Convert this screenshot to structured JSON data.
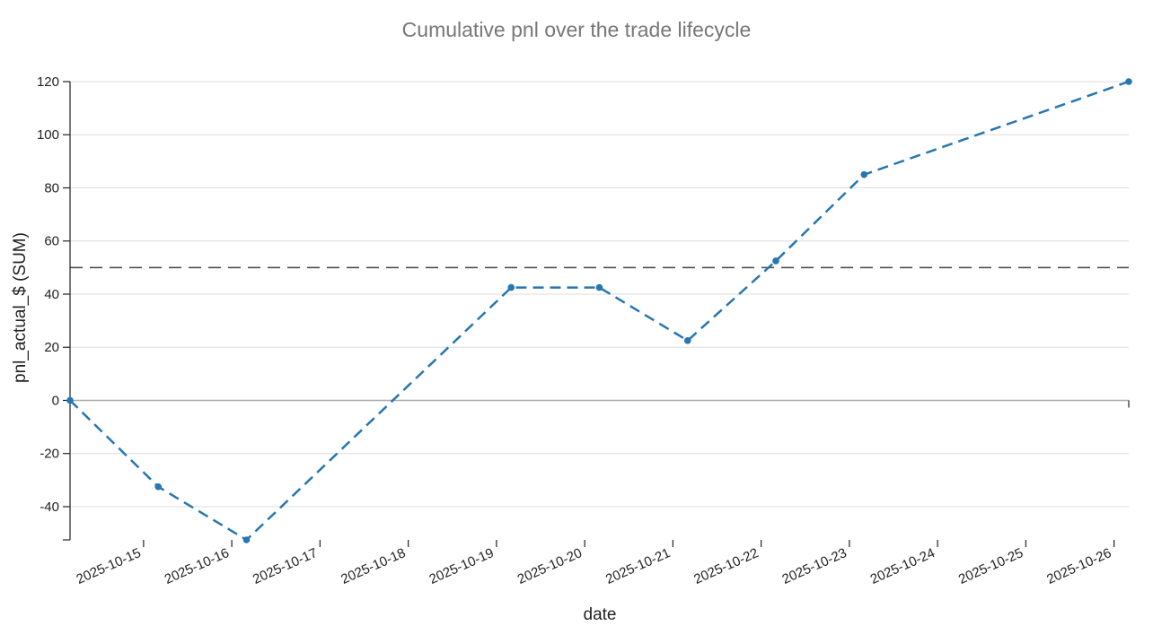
{
  "chart_data": {
    "type": "line",
    "title": "Cumulative pnl over the trade lifecycle",
    "xlabel": "date",
    "ylabel": "pnl_actual_$ (SUM)",
    "x_axis_type": "date",
    "x_ticks": [
      "2025-10-15",
      "2025-10-16",
      "2025-10-17",
      "2025-10-18",
      "2025-10-19",
      "2025-10-20",
      "2025-10-21",
      "2025-10-22",
      "2025-10-23",
      "2025-10-24",
      "2025-10-25",
      "2025-10-26"
    ],
    "xlim": [
      "2025-10-14T04:00:00",
      "2025-10-26T04:00:00"
    ],
    "ylim": [
      -52.5,
      120
    ],
    "y_ticks": [
      -40,
      -20,
      0,
      20,
      40,
      60,
      80,
      100,
      120
    ],
    "y_tick_labels": [
      "-40",
      "-20",
      "0",
      "20",
      "40",
      "60",
      "80",
      "100",
      "120"
    ],
    "grid": true,
    "reference_line": {
      "y": 50,
      "style": "dashed",
      "color": "#444444"
    },
    "series": [
      {
        "color": "#2676b2",
        "line_style": "dashed",
        "markers": true,
        "points": [
          {
            "x": "2025-10-14T04:00:00",
            "y": 0
          },
          {
            "x": "2025-10-15T04:00:00",
            "y": -32.5
          },
          {
            "x": "2025-10-16T04:00:00",
            "y": -52.5
          },
          {
            "x": "2025-10-19T04:00:00",
            "y": 42.5
          },
          {
            "x": "2025-10-20T04:00:00",
            "y": 42.5
          },
          {
            "x": "2025-10-21T04:00:00",
            "y": 22.5
          },
          {
            "x": "2025-10-22T04:00:00",
            "y": 52.5
          },
          {
            "x": "2025-10-23T04:00:00",
            "y": 85
          },
          {
            "x": "2025-10-26T04:00:00",
            "y": 120
          }
        ]
      }
    ]
  }
}
